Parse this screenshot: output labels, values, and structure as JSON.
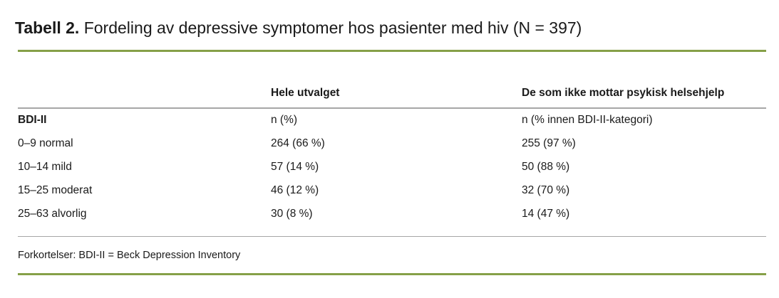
{
  "title": {
    "label": "Tabell 2.",
    "text": " Fordeling av depressive symptomer hos pasienter med hiv (N = 397)"
  },
  "table": {
    "columns": [
      "",
      "Hele utvalget",
      "De som ikke mottar psykisk helsehjelp"
    ],
    "rows": [
      {
        "label": "BDI-II",
        "col1": "n (%)",
        "col2": "n (% innen BDI-II-kategori)"
      },
      {
        "label": "0–9 normal",
        "col1": "264 (66 %)",
        "col2": "255 (97 %)"
      },
      {
        "label": "10–14 mild",
        "col1": "57 (14 %)",
        "col2": "50 (88 %)"
      },
      {
        "label": "15–25 moderat",
        "col1": "46 (12 %)",
        "col2": "32 (70 %)"
      },
      {
        "label": "25–63 alvorlig",
        "col1": "30 (8 %)",
        "col2": "14 (47 %)"
      }
    ],
    "footnote": "Forkortelser: BDI-II = Beck Depression Inventory"
  },
  "colors": {
    "accent_green": "#86a048",
    "rule_gray": "#a6a6a6",
    "text": "#1a1a1a"
  }
}
